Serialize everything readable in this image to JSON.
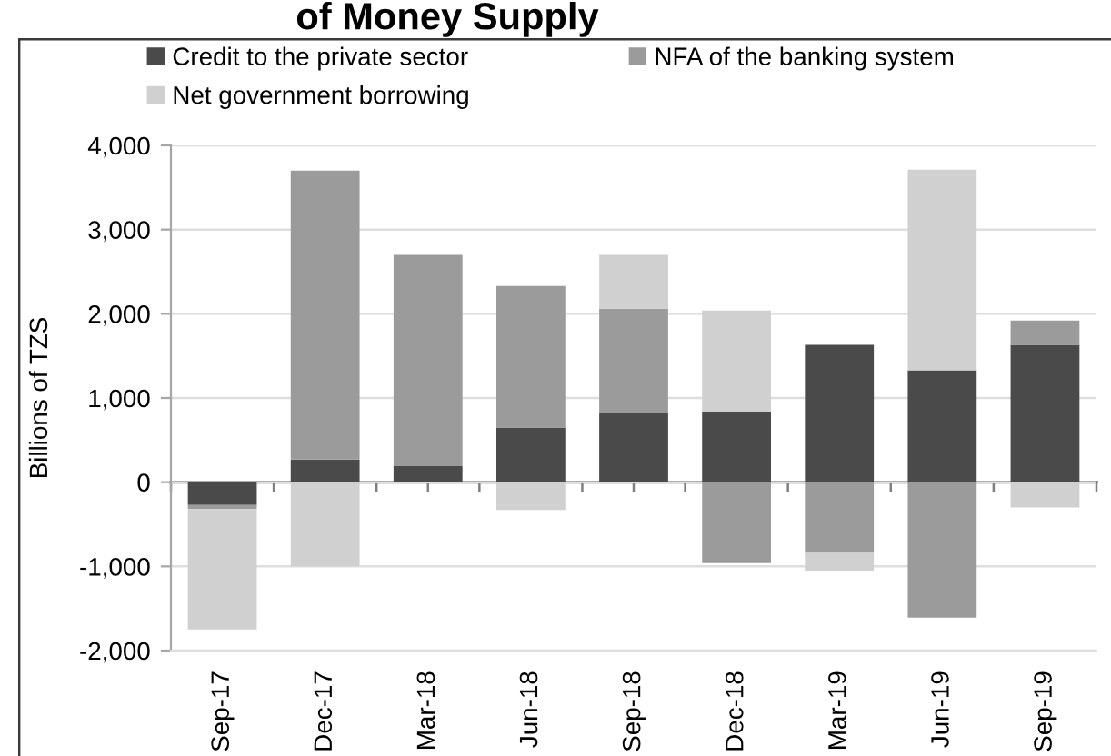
{
  "chart_data": {
    "type": "bar",
    "title": "of Money Supply",
    "ylabel": "Billions of TZS",
    "categories": [
      "Sep-17",
      "Dec-17",
      "Mar-18",
      "Jun-18",
      "Sep-18",
      "Dec-18",
      "Mar-19",
      "Jun-19",
      "Sep-19"
    ],
    "series": [
      {
        "name": "Credit to the private sector",
        "color": "#4a4a4a",
        "values": [
          -270,
          270,
          190,
          650,
          820,
          840,
          1630,
          1330,
          1630
        ]
      },
      {
        "name": "NFA of the banking system",
        "color": "#9b9b9b",
        "values": [
          -50,
          3430,
          2510,
          1680,
          1240,
          -960,
          -840,
          -1610,
          290
        ]
      },
      {
        "name": "Net government borrowing",
        "color": "#d0d0d0",
        "values": [
          -1430,
          -1000,
          null,
          -330,
          640,
          1200,
          -210,
          2380,
          -300
        ]
      }
    ],
    "stacked": true,
    "ylim": [
      -2000,
      4000
    ],
    "yticks": [
      {
        "value": -2000,
        "label": "-2,000"
      },
      {
        "value": -1000,
        "label": "-1,000"
      },
      0,
      {
        "value": 1000,
        "label": "1,000"
      },
      {
        "value": 2000,
        "label": "2,000"
      },
      {
        "value": 3000,
        "label": "3,000"
      },
      {
        "value": 4000,
        "label": "4,000"
      }
    ],
    "grid": "y",
    "legend": "top"
  }
}
